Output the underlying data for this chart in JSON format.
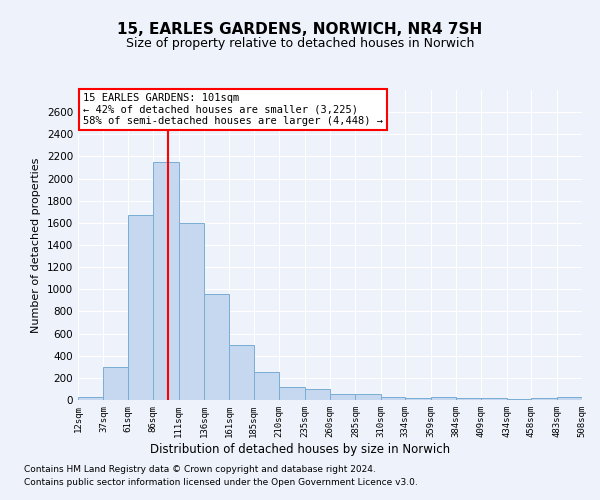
{
  "title": "15, EARLES GARDENS, NORWICH, NR4 7SH",
  "subtitle": "Size of property relative to detached houses in Norwich",
  "xlabel": "Distribution of detached houses by size in Norwich",
  "ylabel": "Number of detached properties",
  "bar_color": "#c5d8f0",
  "bar_edge_color": "#7aadd4",
  "vline_color": "red",
  "vline_x": 101,
  "annotation_line1": "15 EARLES GARDENS: 101sqm",
  "annotation_line2": "← 42% of detached houses are smaller (3,225)",
  "annotation_line3": "58% of semi-detached houses are larger (4,448) →",
  "bin_edges": [
    12,
    37,
    61,
    86,
    111,
    136,
    161,
    185,
    210,
    235,
    260,
    285,
    310,
    334,
    359,
    384,
    409,
    434,
    458,
    483,
    508
  ],
  "counts": [
    25,
    300,
    1675,
    2150,
    1600,
    960,
    500,
    250,
    120,
    100,
    50,
    50,
    30,
    20,
    30,
    20,
    20,
    5,
    20,
    25
  ],
  "ylim": [
    0,
    2800
  ],
  "yticks": [
    0,
    200,
    400,
    600,
    800,
    1000,
    1200,
    1400,
    1600,
    1800,
    2000,
    2200,
    2400,
    2600
  ],
  "footnote1": "Contains HM Land Registry data © Crown copyright and database right 2024.",
  "footnote2": "Contains public sector information licensed under the Open Government Licence v3.0.",
  "bg_color": "#eef2fb",
  "plot_bg_color": "#eef2fb"
}
